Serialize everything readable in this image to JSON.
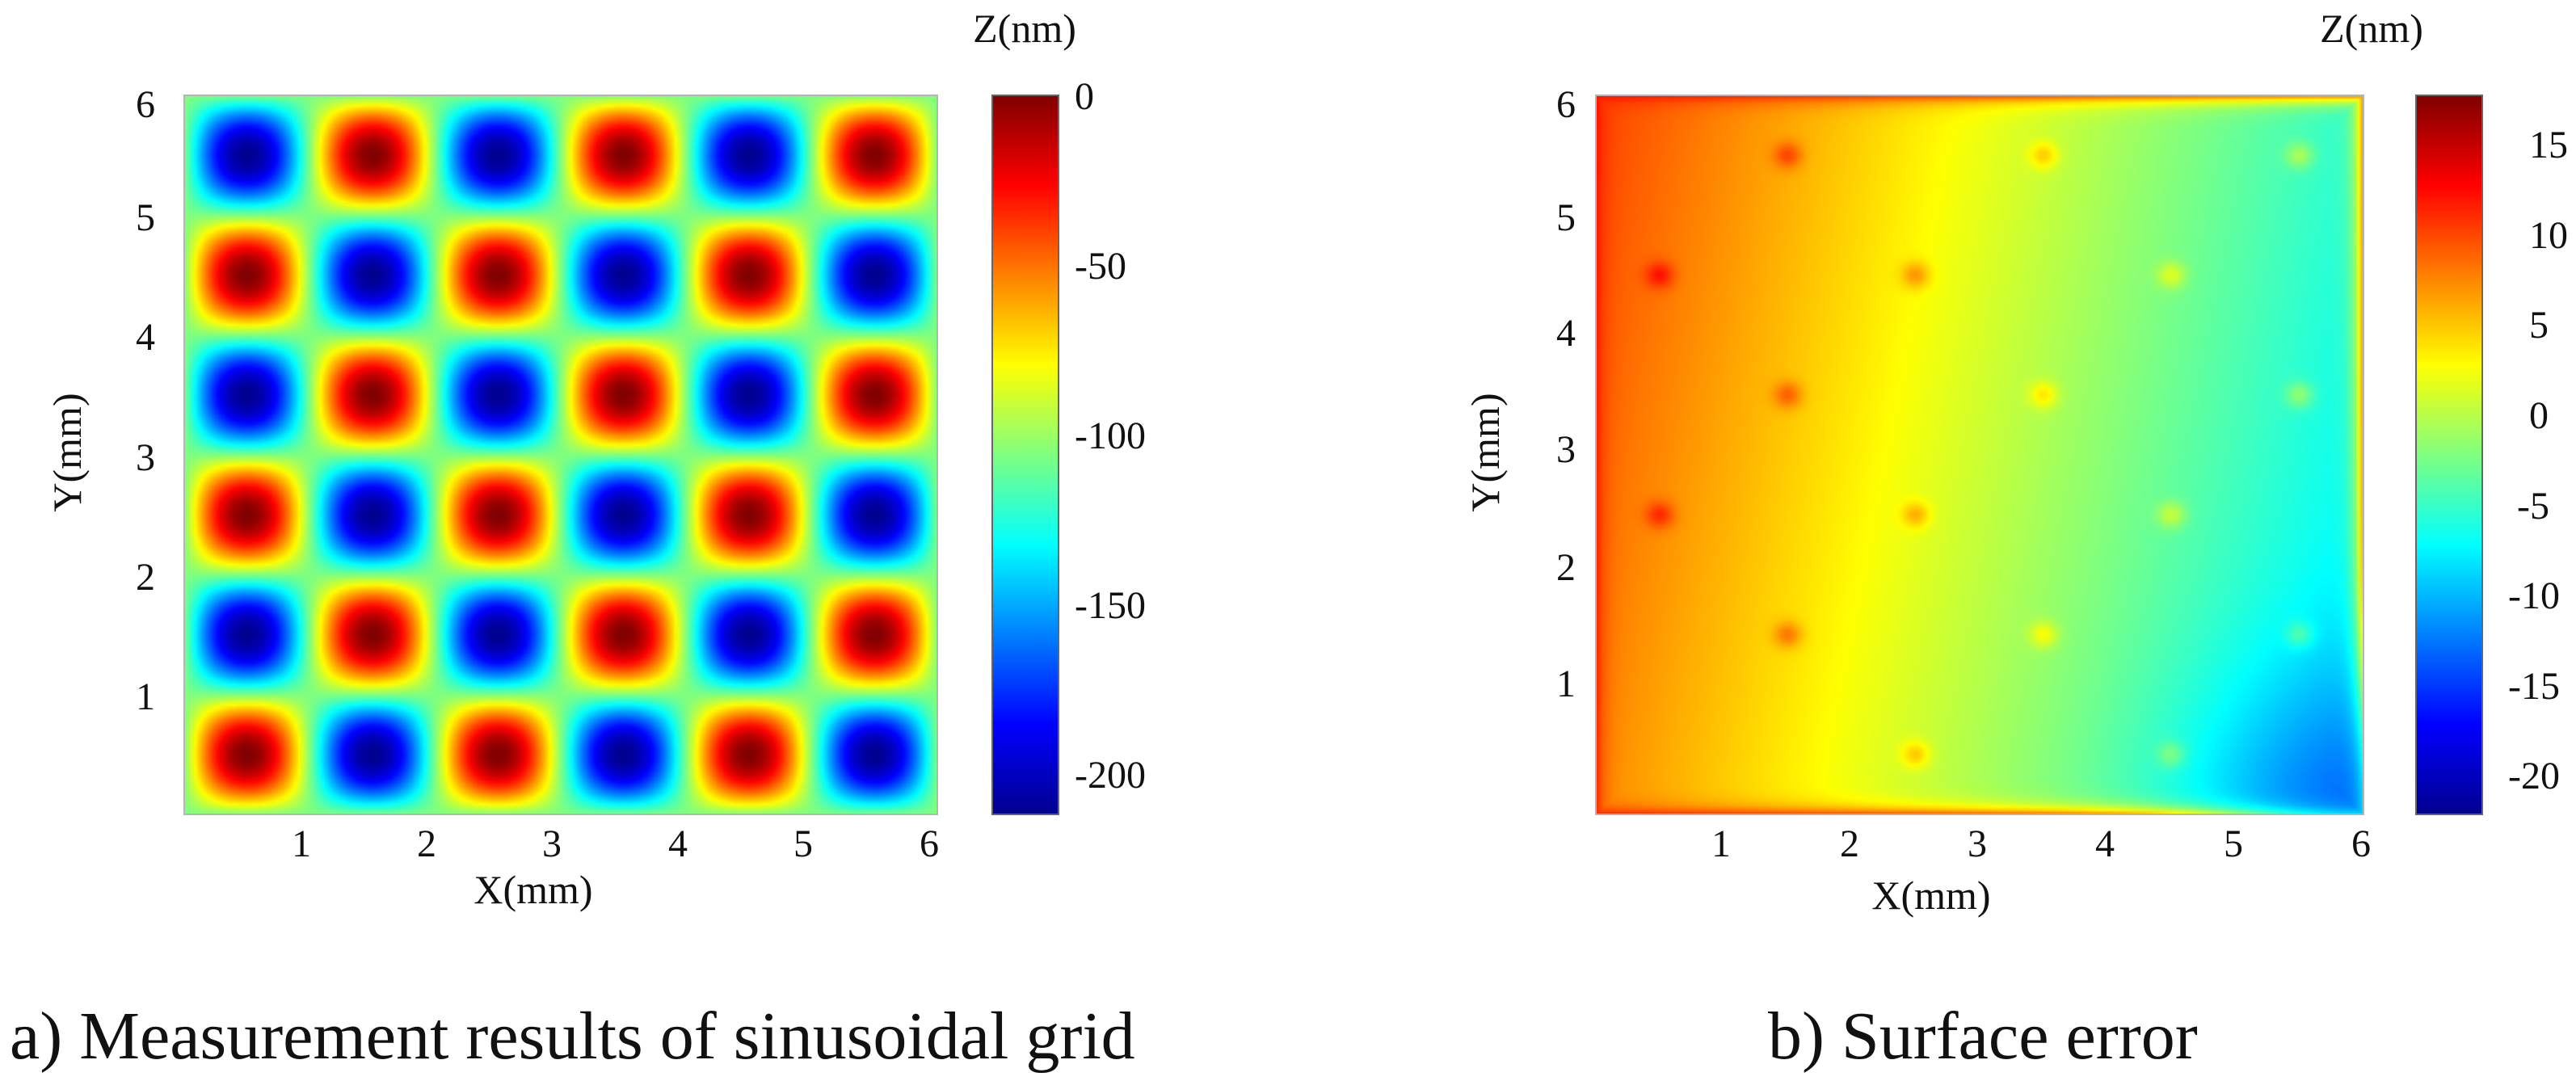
{
  "colormap": [
    "#00008f",
    "#0000ff",
    "#00ffff",
    "#ffff00",
    "#ff0000",
    "#800000"
  ],
  "chart_data": [
    {
      "type": "heatmap",
      "id": "a",
      "caption": "a) Measurement results of sinusoidal grid",
      "xlabel": "X(mm)",
      "ylabel": "Y(mm)",
      "colorbar_title": "Z(nm)",
      "xlim": [
        0,
        6
      ],
      "ylim": [
        0,
        6
      ],
      "xticks": [
        1,
        2,
        3,
        4,
        5,
        6
      ],
      "yticks": [
        1,
        2,
        3,
        4,
        5,
        6
      ],
      "zlim": [
        -212,
        0
      ],
      "colorbar_ticks": [
        0,
        -50,
        -100,
        -150,
        -200
      ],
      "cell_size_mm": 1,
      "z_mean": -106,
      "z_amplitude": 106,
      "cell_pattern_rows_top_to_bottom": [
        [
          "low",
          "high",
          "low",
          "high",
          "low",
          "high"
        ],
        [
          "high",
          "low",
          "high",
          "low",
          "high",
          "low"
        ],
        [
          "low",
          "high",
          "low",
          "high",
          "low",
          "high"
        ],
        [
          "high",
          "low",
          "high",
          "low",
          "high",
          "low"
        ],
        [
          "low",
          "high",
          "low",
          "high",
          "low",
          "high"
        ],
        [
          "high",
          "low",
          "high",
          "low",
          "high",
          "low"
        ]
      ]
    },
    {
      "type": "heatmap",
      "id": "b",
      "caption": "b) Surface error",
      "xlabel": "X(mm)",
      "ylabel": "Y(mm)",
      "colorbar_title": "Z(nm)",
      "xlim": [
        0,
        6
      ],
      "ylim": [
        0,
        6
      ],
      "xticks": [
        1,
        2,
        3,
        4,
        5,
        6
      ],
      "yticks": [
        1,
        2,
        3,
        4,
        5,
        6
      ],
      "zlim": [
        -22,
        18
      ],
      "colorbar_ticks": [
        15,
        10,
        5,
        0,
        -5,
        -10,
        -15,
        -20
      ],
      "gradient": {
        "left_x_mm": 0,
        "left_z": 9,
        "right_x_mm": 6,
        "right_z": -7,
        "y_tilt_nm_per_mm": 0.5
      },
      "edge_rim_z": 13,
      "corner_low_z": -15,
      "bump_z": 4,
      "bumps_mm": [
        [
          1.5,
          5.5
        ],
        [
          3.5,
          5.5
        ],
        [
          5.5,
          5.5
        ],
        [
          0.5,
          4.5
        ],
        [
          2.5,
          4.5
        ],
        [
          4.5,
          4.5
        ],
        [
          1.5,
          3.5
        ],
        [
          3.5,
          3.5
        ],
        [
          5.5,
          3.5
        ],
        [
          0.5,
          2.5
        ],
        [
          2.5,
          2.5
        ],
        [
          4.5,
          2.5
        ],
        [
          1.5,
          1.5
        ],
        [
          3.5,
          1.5
        ],
        [
          5.5,
          1.5
        ],
        [
          2.5,
          0.5
        ],
        [
          4.5,
          0.5
        ]
      ]
    }
  ]
}
